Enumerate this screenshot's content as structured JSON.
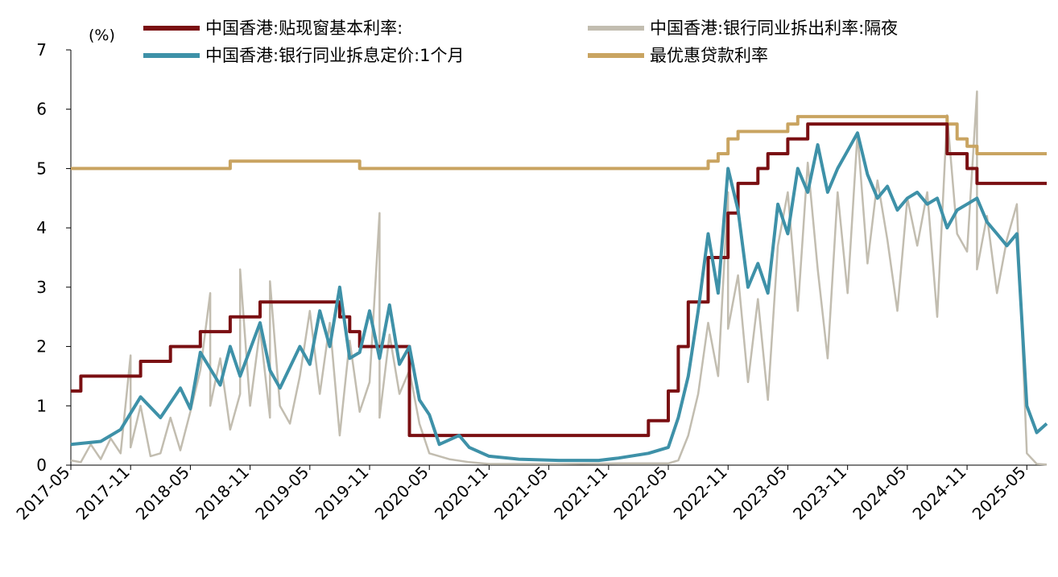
{
  "chart_data": {
    "type": "line",
    "unit": "(%)",
    "ylim": [
      0,
      7
    ],
    "y_ticks": [
      "0",
      "1",
      "2",
      "3",
      "4",
      "5",
      "6",
      "7"
    ],
    "x_range": [
      "2017-05",
      "2025-07"
    ],
    "x_ticks": [
      "2017-05",
      "2017-11",
      "2018-05",
      "2018-11",
      "2019-05",
      "2019-11",
      "2020-05",
      "2020-11",
      "2021-05",
      "2021-11",
      "2022-05",
      "2022-11",
      "2023-05",
      "2023-11",
      "2024-05",
      "2024-11",
      "2025-05"
    ],
    "grid": false,
    "legend_position": "top",
    "series": [
      {
        "name": "中国香港:贴现窗基本利率:",
        "color": "#7a0f12",
        "step": true,
        "points": [
          [
            "2017-05",
            1.25
          ],
          [
            "2017-06",
            1.5
          ],
          [
            "2017-12",
            1.75
          ],
          [
            "2018-03",
            2.0
          ],
          [
            "2018-06",
            2.25
          ],
          [
            "2018-09",
            2.5
          ],
          [
            "2018-12",
            2.75
          ],
          [
            "2019-08",
            2.5
          ],
          [
            "2019-09",
            2.25
          ],
          [
            "2019-10",
            2.0
          ],
          [
            "2020-03",
            1.5
          ],
          [
            "2020-03",
            0.86
          ],
          [
            "2020-03",
            0.5
          ],
          [
            "2022-03",
            0.75
          ],
          [
            "2022-05",
            1.25
          ],
          [
            "2022-06",
            2.0
          ],
          [
            "2022-07",
            2.75
          ],
          [
            "2022-09",
            3.5
          ],
          [
            "2022-11",
            4.25
          ],
          [
            "2022-12",
            4.75
          ],
          [
            "2023-02",
            5.0
          ],
          [
            "2023-03",
            5.25
          ],
          [
            "2023-05",
            5.5
          ],
          [
            "2023-07",
            5.75
          ],
          [
            "2024-09",
            5.25
          ],
          [
            "2024-11",
            5.0
          ],
          [
            "2024-12",
            4.75
          ],
          [
            "2025-07",
            4.75
          ]
        ]
      },
      {
        "name": "中国香港:银行同业拆出利率:隔夜",
        "color": "#c2bdb0",
        "points": [
          [
            "2017-05",
            0.08
          ],
          [
            "2017-06",
            0.05
          ],
          [
            "2017-07",
            0.35
          ],
          [
            "2017-08",
            0.1
          ],
          [
            "2017-09",
            0.45
          ],
          [
            "2017-10",
            0.2
          ],
          [
            "2017-11",
            1.85
          ],
          [
            "2017-11",
            0.3
          ],
          [
            "2017-12",
            1.0
          ],
          [
            "2018-01",
            0.15
          ],
          [
            "2018-02",
            0.2
          ],
          [
            "2018-03",
            0.8
          ],
          [
            "2018-04",
            0.25
          ],
          [
            "2018-05",
            0.9
          ],
          [
            "2018-06",
            1.6
          ],
          [
            "2018-07",
            2.9
          ],
          [
            "2018-07",
            1.0
          ],
          [
            "2018-08",
            1.8
          ],
          [
            "2018-09",
            0.6
          ],
          [
            "2018-10",
            1.2
          ],
          [
            "2018-10",
            3.3
          ],
          [
            "2018-11",
            1.0
          ],
          [
            "2018-12",
            2.3
          ],
          [
            "2019-01",
            0.8
          ],
          [
            "2019-01",
            3.1
          ],
          [
            "2019-02",
            1.0
          ],
          [
            "2019-03",
            0.7
          ],
          [
            "2019-04",
            1.5
          ],
          [
            "2019-05",
            2.6
          ],
          [
            "2019-06",
            1.2
          ],
          [
            "2019-07",
            2.4
          ],
          [
            "2019-08",
            0.5
          ],
          [
            "2019-09",
            2.1
          ],
          [
            "2019-10",
            0.9
          ],
          [
            "2019-11",
            1.4
          ],
          [
            "2019-12",
            4.25
          ],
          [
            "2019-12",
            0.8
          ],
          [
            "2020-01",
            2.2
          ],
          [
            "2020-02",
            1.2
          ],
          [
            "2020-03",
            1.6
          ],
          [
            "2020-04",
            0.7
          ],
          [
            "2020-05",
            0.2
          ],
          [
            "2020-07",
            0.1
          ],
          [
            "2020-09",
            0.05
          ],
          [
            "2020-11",
            0.02
          ],
          [
            "2021-06",
            0.02
          ],
          [
            "2021-12",
            0.03
          ],
          [
            "2022-05",
            0.03
          ],
          [
            "2022-06",
            0.08
          ],
          [
            "2022-07",
            0.5
          ],
          [
            "2022-08",
            1.2
          ],
          [
            "2022-09",
            2.4
          ],
          [
            "2022-10",
            1.5
          ],
          [
            "2022-11",
            4.6
          ],
          [
            "2022-11",
            2.3
          ],
          [
            "2022-12",
            3.2
          ],
          [
            "2023-01",
            1.4
          ],
          [
            "2023-02",
            2.8
          ],
          [
            "2023-03",
            1.1
          ],
          [
            "2023-04",
            3.7
          ],
          [
            "2023-05",
            4.6
          ],
          [
            "2023-06",
            2.6
          ],
          [
            "2023-07",
            5.1
          ],
          [
            "2023-08",
            3.3
          ],
          [
            "2023-09",
            1.8
          ],
          [
            "2023-10",
            4.6
          ],
          [
            "2023-11",
            2.9
          ],
          [
            "2023-12",
            5.6
          ],
          [
            "2024-01",
            3.4
          ],
          [
            "2024-02",
            4.8
          ],
          [
            "2024-03",
            3.8
          ],
          [
            "2024-04",
            2.6
          ],
          [
            "2024-05",
            4.5
          ],
          [
            "2024-06",
            3.7
          ],
          [
            "2024-07",
            4.6
          ],
          [
            "2024-08",
            2.5
          ],
          [
            "2024-09",
            5.9
          ],
          [
            "2024-10",
            3.9
          ],
          [
            "2024-11",
            3.6
          ],
          [
            "2024-12",
            6.3
          ],
          [
            "2024-12",
            3.3
          ],
          [
            "2025-01",
            4.2
          ],
          [
            "2025-02",
            2.9
          ],
          [
            "2025-03",
            3.8
          ],
          [
            "2025-04",
            4.4
          ],
          [
            "2025-05",
            0.2
          ],
          [
            "2025-06",
            0.02
          ],
          [
            "2025-07",
            0.01
          ]
        ]
      },
      {
        "name": "中国香港:银行同业拆息定价:1个月",
        "color": "#3e91a8",
        "points": [
          [
            "2017-05",
            0.35
          ],
          [
            "2017-08",
            0.4
          ],
          [
            "2017-10",
            0.6
          ],
          [
            "2017-12",
            1.15
          ],
          [
            "2018-02",
            0.8
          ],
          [
            "2018-04",
            1.3
          ],
          [
            "2018-05",
            0.95
          ],
          [
            "2018-06",
            1.9
          ],
          [
            "2018-08",
            1.35
          ],
          [
            "2018-09",
            2.0
          ],
          [
            "2018-10",
            1.5
          ],
          [
            "2018-12",
            2.4
          ],
          [
            "2019-01",
            1.6
          ],
          [
            "2019-02",
            1.3
          ],
          [
            "2019-04",
            2.0
          ],
          [
            "2019-05",
            1.7
          ],
          [
            "2019-06",
            2.6
          ],
          [
            "2019-07",
            2.0
          ],
          [
            "2019-08",
            3.0
          ],
          [
            "2019-09",
            1.8
          ],
          [
            "2019-10",
            1.9
          ],
          [
            "2019-11",
            2.6
          ],
          [
            "2019-12",
            1.8
          ],
          [
            "2020-01",
            2.7
          ],
          [
            "2020-02",
            1.7
          ],
          [
            "2020-03",
            2.0
          ],
          [
            "2020-04",
            1.1
          ],
          [
            "2020-05",
            0.85
          ],
          [
            "2020-06",
            0.35
          ],
          [
            "2020-08",
            0.5
          ],
          [
            "2020-09",
            0.3
          ],
          [
            "2020-11",
            0.15
          ],
          [
            "2021-02",
            0.1
          ],
          [
            "2021-06",
            0.08
          ],
          [
            "2021-10",
            0.08
          ],
          [
            "2021-12",
            0.12
          ],
          [
            "2022-03",
            0.2
          ],
          [
            "2022-05",
            0.3
          ],
          [
            "2022-06",
            0.8
          ],
          [
            "2022-07",
            1.5
          ],
          [
            "2022-08",
            2.6
          ],
          [
            "2022-09",
            3.9
          ],
          [
            "2022-10",
            2.9
          ],
          [
            "2022-11",
            5.0
          ],
          [
            "2022-12",
            4.3
          ],
          [
            "2023-01",
            3.0
          ],
          [
            "2023-02",
            3.4
          ],
          [
            "2023-03",
            2.9
          ],
          [
            "2023-04",
            4.4
          ],
          [
            "2023-05",
            3.9
          ],
          [
            "2023-06",
            5.0
          ],
          [
            "2023-07",
            4.6
          ],
          [
            "2023-08",
            5.4
          ],
          [
            "2023-09",
            4.6
          ],
          [
            "2023-10",
            5.0
          ],
          [
            "2023-11",
            5.3
          ],
          [
            "2023-12",
            5.6
          ],
          [
            "2024-01",
            4.9
          ],
          [
            "2024-02",
            4.5
          ],
          [
            "2024-03",
            4.7
          ],
          [
            "2024-04",
            4.3
          ],
          [
            "2024-05",
            4.5
          ],
          [
            "2024-06",
            4.6
          ],
          [
            "2024-07",
            4.4
          ],
          [
            "2024-08",
            4.5
          ],
          [
            "2024-09",
            4.0
          ],
          [
            "2024-10",
            4.3
          ],
          [
            "2024-11",
            4.4
          ],
          [
            "2024-12",
            4.5
          ],
          [
            "2025-01",
            4.1
          ],
          [
            "2025-02",
            3.9
          ],
          [
            "2025-03",
            3.7
          ],
          [
            "2025-04",
            3.9
          ],
          [
            "2025-05",
            1.0
          ],
          [
            "2025-06",
            0.55
          ],
          [
            "2025-07",
            0.7
          ]
        ]
      },
      {
        "name": "最优惠贷款利率",
        "color": "#c9a461",
        "step": true,
        "points": [
          [
            "2017-05",
            5.0
          ],
          [
            "2018-09",
            5.125
          ],
          [
            "2019-10",
            5.0
          ],
          [
            "2022-09",
            5.125
          ],
          [
            "2022-10",
            5.25
          ],
          [
            "2022-11",
            5.5
          ],
          [
            "2022-12",
            5.625
          ],
          [
            "2023-05",
            5.75
          ],
          [
            "2023-06",
            5.875
          ],
          [
            "2024-09",
            5.75
          ],
          [
            "2024-10",
            5.5
          ],
          [
            "2024-11",
            5.375
          ],
          [
            "2024-12",
            5.25
          ],
          [
            "2025-07",
            5.25
          ]
        ]
      }
    ]
  }
}
